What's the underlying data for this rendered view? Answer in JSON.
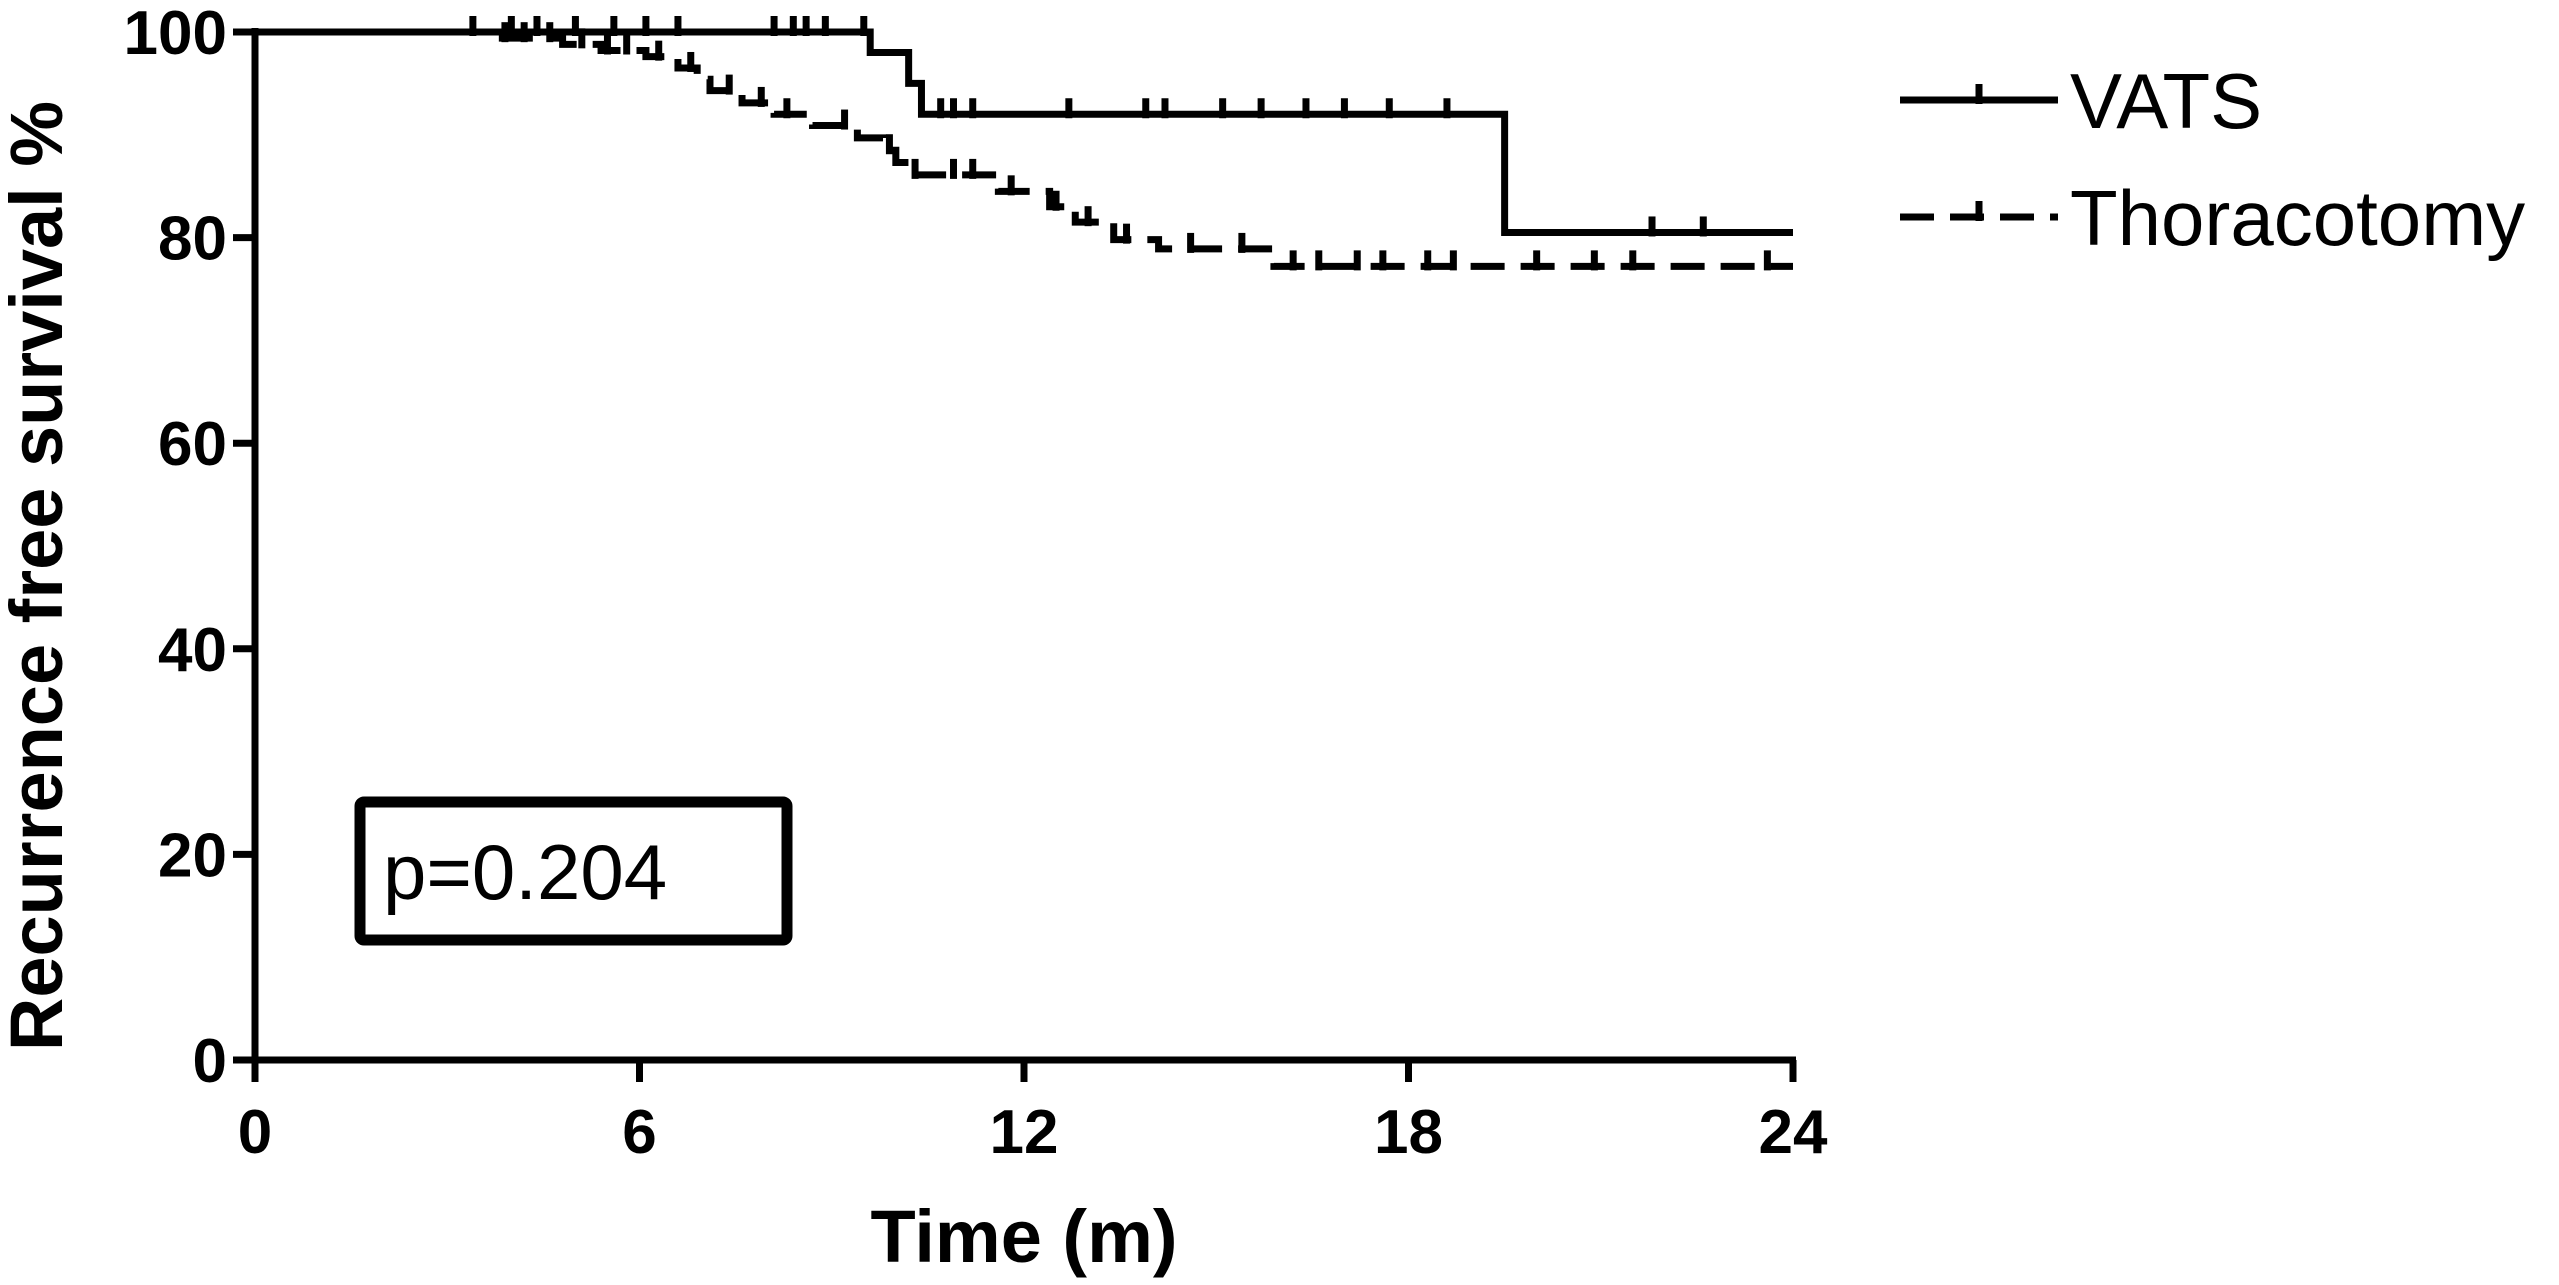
{
  "chart_data": {
    "type": "line",
    "subtype": "kaplan-meier step curve",
    "title": "",
    "xlabel": "Time (m)",
    "ylabel": "Recurrence free survival %",
    "xlim": [
      0,
      24
    ],
    "ylim": [
      0,
      100
    ],
    "xticks": [
      0,
      6,
      12,
      18,
      24
    ],
    "yticks": [
      0,
      20,
      40,
      60,
      80,
      100
    ],
    "grid": false,
    "legend_position": "top-right outside plot",
    "annotation": "p=0.204",
    "series": [
      {
        "name": "VATS",
        "style": "solid",
        "color": "#000000",
        "steps": [
          [
            0,
            100
          ],
          [
            9.6,
            98
          ],
          [
            10.2,
            95
          ],
          [
            10.4,
            92
          ],
          [
            19.4,
            92
          ],
          [
            19.5,
            80.5
          ],
          [
            24,
            80.5
          ]
        ],
        "censor_times": [
          3.4,
          4.0,
          4.4,
          5.0,
          5.6,
          6.1,
          6.6,
          8.1,
          8.4,
          8.6,
          8.9,
          9.5,
          10.7,
          10.9,
          11.2,
          12.7,
          13.9,
          14.2,
          15.1,
          15.7,
          16.4,
          17.0,
          17.7,
          18.6,
          21.8,
          22.6
        ]
      },
      {
        "name": "Thoracotomy",
        "style": "dashed",
        "color": "#000000",
        "steps": [
          [
            0,
            100
          ],
          [
            3.6,
            99.4
          ],
          [
            4.8,
            98.8
          ],
          [
            5.4,
            98.2
          ],
          [
            6.1,
            97.6
          ],
          [
            6.6,
            96.5
          ],
          [
            6.9,
            95.4
          ],
          [
            7.1,
            94.3
          ],
          [
            7.6,
            93.1
          ],
          [
            8.1,
            92.0
          ],
          [
            8.7,
            90.9
          ],
          [
            9.4,
            89.7
          ],
          [
            9.8,
            88.5
          ],
          [
            10.0,
            87.3
          ],
          [
            10.2,
            86.1
          ],
          [
            11.6,
            84.5
          ],
          [
            12.4,
            83.0
          ],
          [
            12.8,
            81.5
          ],
          [
            13.4,
            79.8
          ],
          [
            14.1,
            78.9
          ],
          [
            15.9,
            77.2
          ],
          [
            24,
            77.2
          ]
        ],
        "censor_times": [
          3.9,
          4.2,
          4.6,
          5.1,
          5.5,
          5.8,
          6.3,
          6.8,
          7.4,
          7.9,
          8.3,
          9.2,
          9.9,
          10.3,
          10.9,
          11.2,
          11.8,
          12.5,
          13.0,
          13.6,
          14.6,
          15.4,
          16.2,
          16.6,
          17.2,
          17.6,
          18.3,
          18.7,
          20.0,
          20.9,
          21.5,
          23.6
        ]
      }
    ]
  }
}
